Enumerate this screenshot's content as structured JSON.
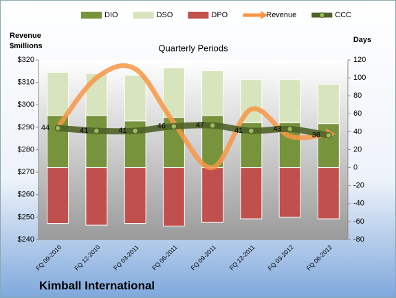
{
  "chart_data": {
    "type": "bar",
    "title": "Quarterly Periods",
    "y_label": "Revenue $millions",
    "y2_label": "Days",
    "footer": "Kimball International",
    "categories": [
      "FQ 09-2010",
      "FQ 12-2010",
      "FQ 03-2011",
      "FQ 06-2011",
      "FQ 09-2011",
      "FQ 12-2011",
      "FQ 03-2012",
      "FQ 06-2012"
    ],
    "ylim": [
      240,
      320
    ],
    "yticks": [
      {
        "value": 240,
        "label": "$240"
      },
      {
        "value": 250,
        "label": "$250"
      },
      {
        "value": 260,
        "label": "$260"
      },
      {
        "value": 270,
        "label": "$270"
      },
      {
        "value": 280,
        "label": "$280"
      },
      {
        "value": 290,
        "label": "$290"
      },
      {
        "value": 300,
        "label": "$300"
      },
      {
        "value": 310,
        "label": "$310"
      },
      {
        "value": 320,
        "label": "$320"
      }
    ],
    "y2lim": [
      -80,
      120
    ],
    "y2ticks": [
      -80,
      -60,
      -40,
      -20,
      0,
      20,
      40,
      60,
      80,
      100,
      120
    ],
    "grid": false,
    "legend": "top",
    "series": [
      {
        "name": "DIO",
        "type": "bar",
        "axis": "y2",
        "color": "#77933c",
        "values": [
          58,
          58,
          52,
          56,
          58,
          50,
          50,
          49
        ]
      },
      {
        "name": "DSO",
        "type": "bar",
        "axis": "y2",
        "color": "#d7e4bd",
        "values": [
          48,
          47,
          51,
          55,
          50,
          48,
          48,
          44
        ]
      },
      {
        "name": "DPO",
        "type": "bar",
        "axis": "y2",
        "color": "#c0504d",
        "values": [
          -62,
          -64,
          -62,
          -65,
          -61,
          -57,
          -55,
          -57
        ]
      },
      {
        "name": "Revenue",
        "type": "line",
        "axis": "y",
        "color": "#f79646",
        "values": [
          290,
          312,
          316,
          292,
          272,
          298,
          286,
          287
        ]
      },
      {
        "name": "CCC",
        "type": "line",
        "axis": "y2",
        "color": "#4f6228",
        "values": [
          44,
          41,
          41,
          46,
          47,
          41,
          43,
          36
        ]
      }
    ]
  }
}
